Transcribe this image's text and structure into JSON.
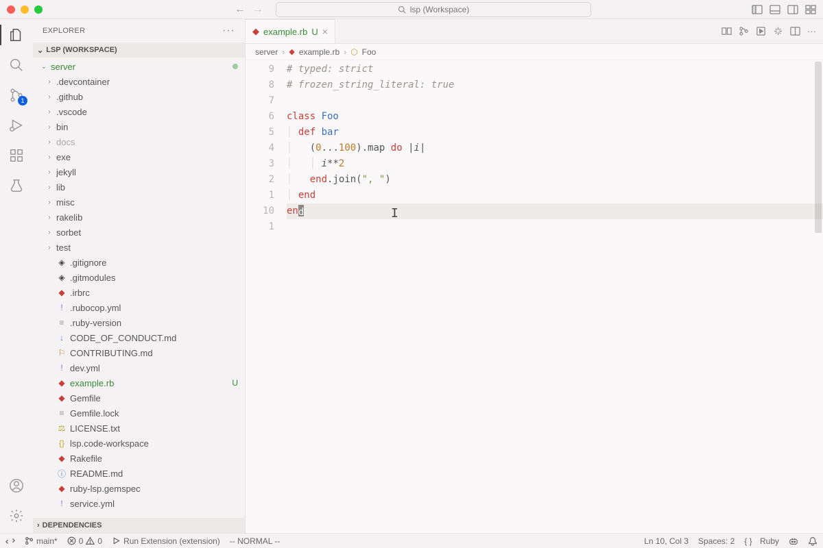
{
  "titlebar": {
    "search_text": "lsp (Workspace)"
  },
  "activitybar": {
    "scm_badge": "1"
  },
  "sidebar": {
    "title": "EXPLORER",
    "workspace_label": "LSP (WORKSPACE)",
    "root_name": "server",
    "deps_label": "DEPENDENCIES",
    "items": [
      {
        "name": ".devcontainer",
        "type": "dir"
      },
      {
        "name": ".github",
        "type": "dir"
      },
      {
        "name": ".vscode",
        "type": "dir"
      },
      {
        "name": "bin",
        "type": "dir"
      },
      {
        "name": "docs",
        "type": "dir",
        "dim": true
      },
      {
        "name": "exe",
        "type": "dir"
      },
      {
        "name": "jekyll",
        "type": "dir"
      },
      {
        "name": "lib",
        "type": "dir"
      },
      {
        "name": "misc",
        "type": "dir"
      },
      {
        "name": "rakelib",
        "type": "dir"
      },
      {
        "name": "sorbet",
        "type": "dir"
      },
      {
        "name": "test",
        "type": "dir"
      },
      {
        "name": ".gitignore",
        "type": "git"
      },
      {
        "name": ".gitmodules",
        "type": "git"
      },
      {
        "name": ".irbrc",
        "type": "ruby"
      },
      {
        "name": ".rubocop.yml",
        "type": "yaml"
      },
      {
        "name": ".ruby-version",
        "type": "txt"
      },
      {
        "name": "CODE_OF_CONDUCT.md",
        "type": "md"
      },
      {
        "name": "CONTRIBUTING.md",
        "type": "ribbon"
      },
      {
        "name": "dev.yml",
        "type": "yaml"
      },
      {
        "name": "example.rb",
        "type": "ruby",
        "status": "U",
        "modified": true
      },
      {
        "name": "Gemfile",
        "type": "ruby"
      },
      {
        "name": "Gemfile.lock",
        "type": "txt"
      },
      {
        "name": "LICENSE.txt",
        "type": "lic"
      },
      {
        "name": "lsp.code-workspace",
        "type": "json"
      },
      {
        "name": "Rakefile",
        "type": "ruby"
      },
      {
        "name": "README.md",
        "type": "info"
      },
      {
        "name": "ruby-lsp.gemspec",
        "type": "ruby"
      },
      {
        "name": "service.yml",
        "type": "yaml"
      }
    ]
  },
  "tab": {
    "name": "example.rb",
    "status": "U"
  },
  "breadcrumbs": {
    "p0": "server",
    "p1": "example.rb",
    "p2": "Foo"
  },
  "gutter": [
    "9",
    "8",
    "7",
    "6",
    "5",
    "4",
    "3",
    "2",
    "1",
    "10",
    "1"
  ],
  "code": {
    "l0_comment": "# typed: strict",
    "l1_comment": "# frozen_string_literal: true",
    "l3_class": "class ",
    "l3_name": "Foo",
    "l4_def": "def ",
    "l4_name": "bar",
    "l5_open": "(",
    "l5_n0": "0",
    "l5_dots": "...",
    "l5_n1": "100",
    "l5_close": ")",
    "l5_map": ".map ",
    "l5_do": "do ",
    "l5_pipe1": "|",
    "l5_var": "i",
    "l5_pipe2": "|",
    "l6_var": "i",
    "l6_op": "**",
    "l6_n": "2",
    "l7_end": "end",
    "l7_join": ".join(",
    "l7_str": "\", \"",
    "l7_close": ")",
    "l8_end": "end",
    "l9_en": "en",
    "l9_d": "d"
  },
  "statusbar": {
    "branch": "main*",
    "errors": "0",
    "warnings": "0",
    "debug": "Run Extension (extension)",
    "vim": "-- NORMAL --",
    "pos": "Ln 10, Col 3",
    "spaces": "Spaces: 2",
    "lang_braces": "{ }",
    "lang": "Ruby"
  },
  "colors": {
    "accent": "#0b5fe1"
  }
}
